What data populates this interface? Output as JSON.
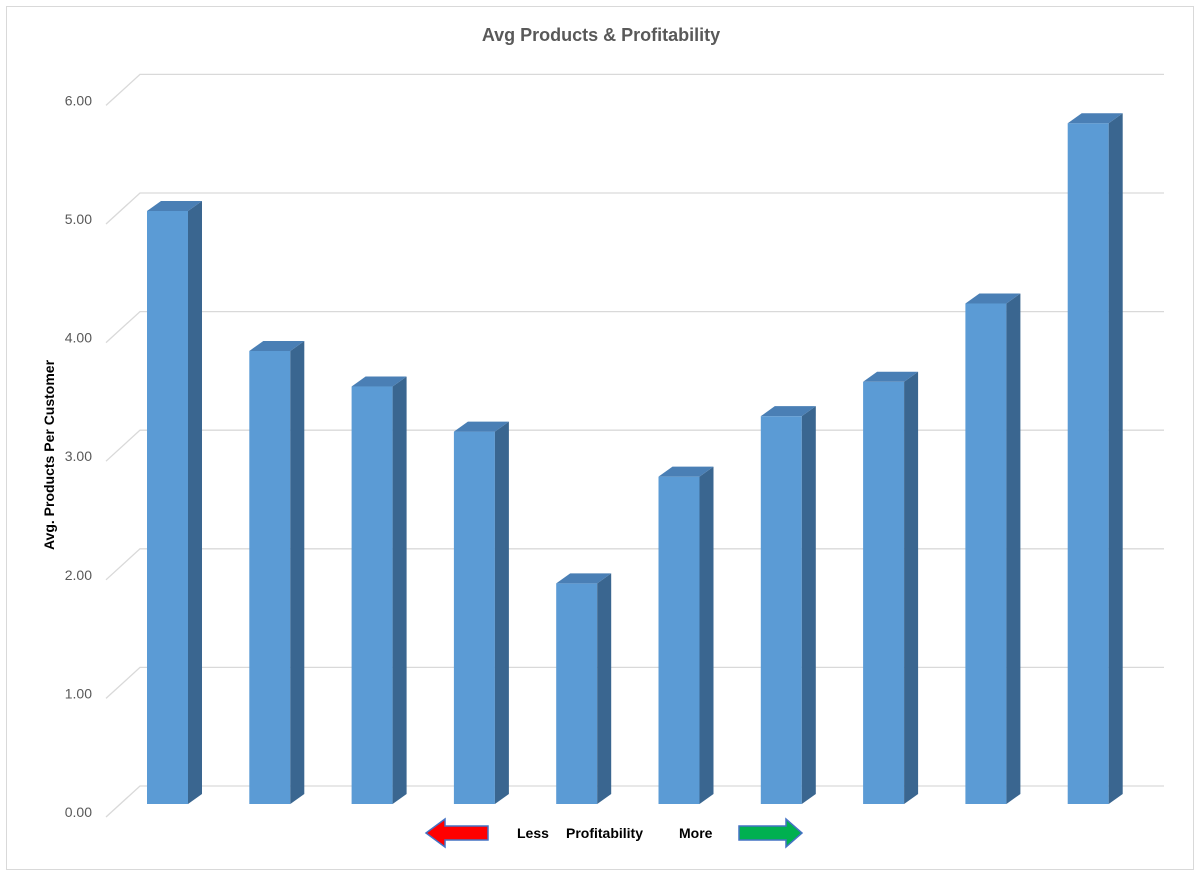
{
  "chart_data": {
    "type": "bar",
    "title": "Avg Products & Profitability",
    "ylabel": "Avg. Products Per Customer",
    "xlabel": "",
    "ylim": [
      0,
      6
    ],
    "yticks": [
      "0.00",
      "1.00",
      "2.00",
      "3.00",
      "4.00",
      "5.00",
      "6.00"
    ],
    "categories": [
      "",
      "",
      "",
      "",
      "",
      "",
      "",
      "",
      "",
      ""
    ],
    "values": [
      5.0,
      3.82,
      3.52,
      3.14,
      1.86,
      2.76,
      3.27,
      3.56,
      4.22,
      5.74
    ],
    "grid": true,
    "bar_style": "3d-column",
    "colors": {
      "bar_front": "#5b9bd5",
      "bar_side": "#3a6690",
      "bar_top": "#4a7fb5",
      "grid": "#d9d9d9",
      "left_arrow": "#ff0000",
      "right_arrow": "#00b050",
      "arrow_outline": "#4472c4"
    },
    "legend": {
      "left_text": "Less",
      "center_text": "Profitability",
      "right_text": "More",
      "left_arrow_icon": "arrow-left-icon",
      "right_arrow_icon": "arrow-right-icon"
    }
  }
}
